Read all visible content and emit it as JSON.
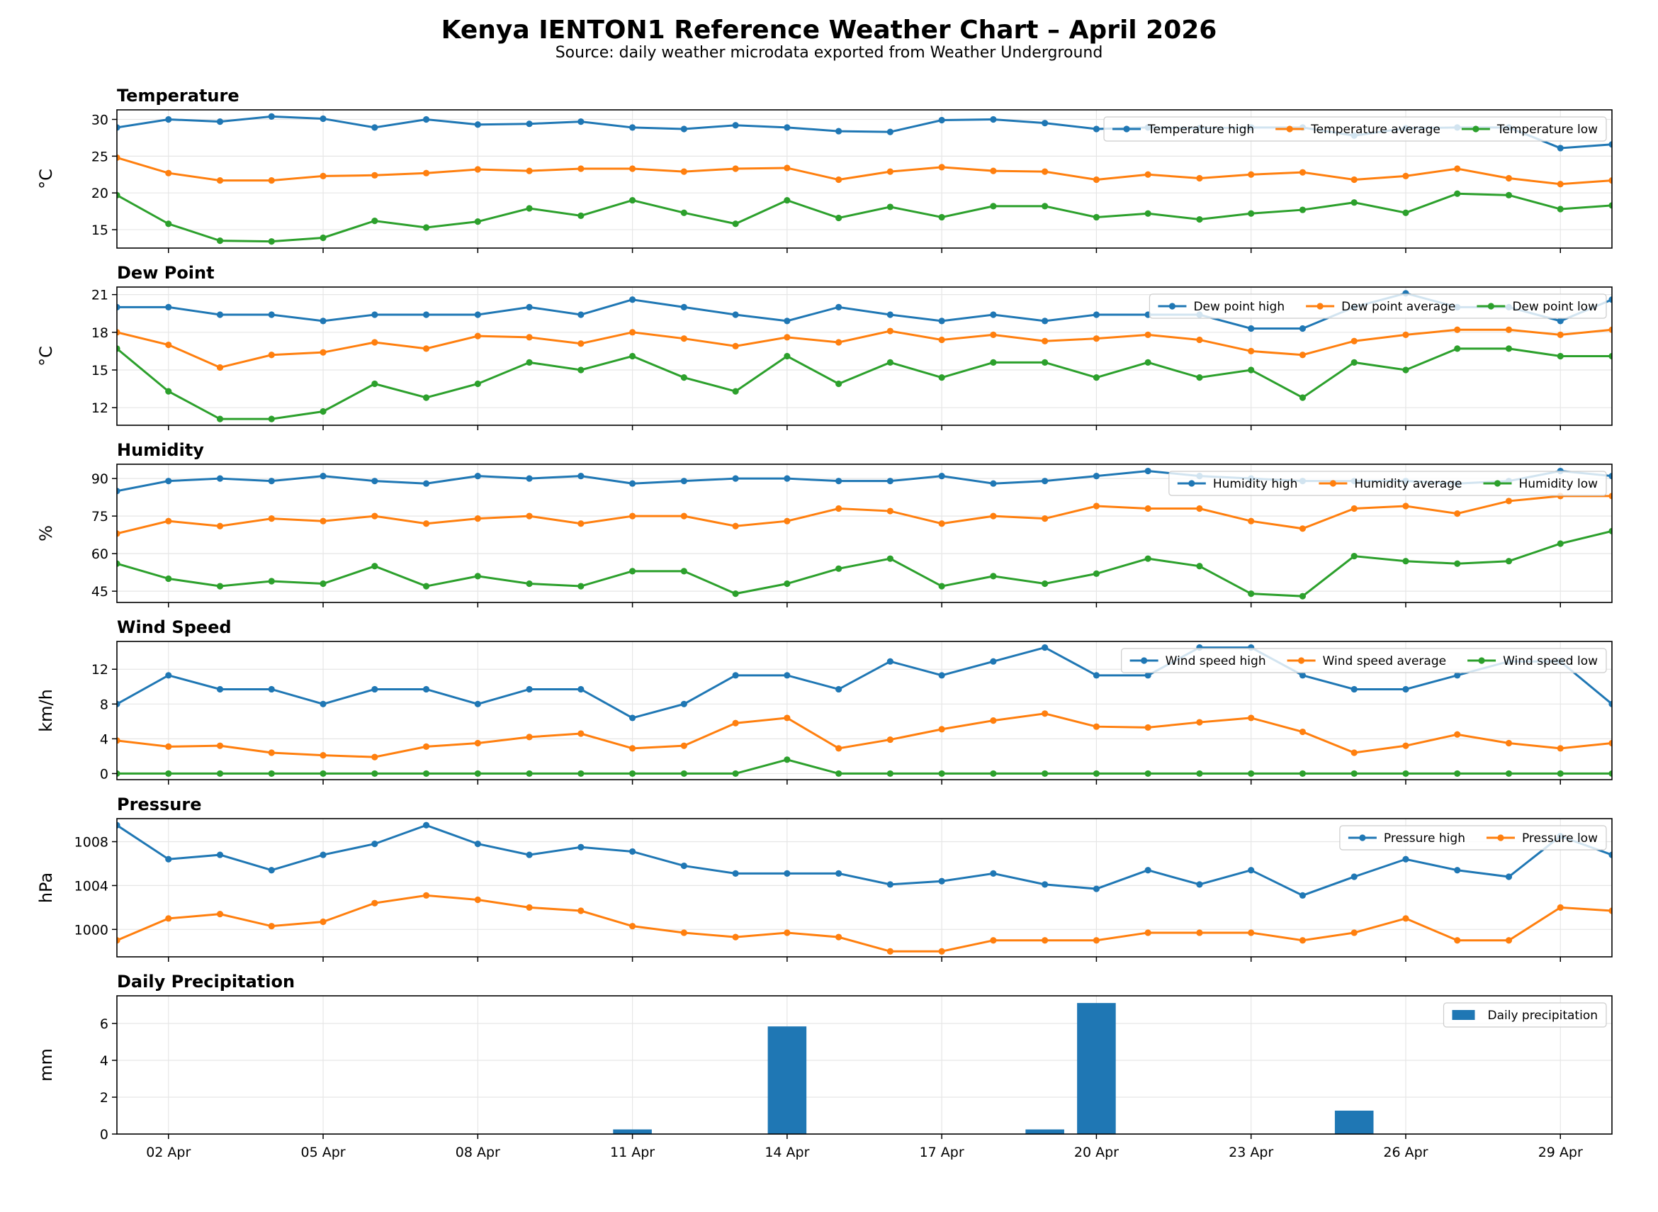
{
  "figure": {
    "title": "Kenya IENTON1 Reference Weather Chart – April 2026",
    "subtitle": "Source: daily weather microdata exported from Weather Underground"
  },
  "colors": {
    "blue": "#1f77b4",
    "orange": "#ff7f0e",
    "green": "#2ca02c",
    "grid": "#e6e6e6"
  },
  "x_tick_labels": [
    "02 Apr",
    "05 Apr",
    "08 Apr",
    "11 Apr",
    "14 Apr",
    "17 Apr",
    "20 Apr",
    "23 Apr",
    "26 Apr",
    "29 Apr"
  ],
  "chart_data": [
    {
      "type": "line",
      "title": "Temperature",
      "ylabel": "°C",
      "x": [
        "2026-04-01",
        "2026-04-02",
        "2026-04-03",
        "2026-04-04",
        "2026-04-05",
        "2026-04-06",
        "2026-04-07",
        "2026-04-08",
        "2026-04-09",
        "2026-04-10",
        "2026-04-11",
        "2026-04-12",
        "2026-04-13",
        "2026-04-14",
        "2026-04-15",
        "2026-04-16",
        "2026-04-17",
        "2026-04-18",
        "2026-04-19",
        "2026-04-20",
        "2026-04-21",
        "2026-04-22",
        "2026-04-23",
        "2026-04-24",
        "2026-04-25",
        "2026-04-26",
        "2026-04-27",
        "2026-04-28",
        "2026-04-29",
        "2026-04-30"
      ],
      "ylim": [
        12.5,
        31.3
      ],
      "yticks": [
        15,
        20,
        25,
        30
      ],
      "grid": true,
      "legend": "top-right",
      "series": [
        {
          "name": "Temperature high",
          "color": "#1f77b4",
          "values": [
            28.9,
            30.0,
            29.7,
            30.4,
            30.1,
            28.9,
            30.0,
            29.3,
            29.4,
            29.7,
            28.9,
            28.7,
            29.2,
            28.9,
            28.4,
            28.3,
            29.9,
            30.0,
            29.5,
            28.7,
            28.9,
            28.8,
            28.9,
            28.9,
            27.8,
            28.8,
            28.9,
            28.9,
            26.1,
            26.6
          ]
        },
        {
          "name": "Temperature average",
          "color": "#ff7f0e",
          "values": [
            24.8,
            22.7,
            21.7,
            21.7,
            22.3,
            22.4,
            22.7,
            23.2,
            23.0,
            23.3,
            23.3,
            22.9,
            23.3,
            23.4,
            21.8,
            22.9,
            23.5,
            23.0,
            22.9,
            21.8,
            22.5,
            22.0,
            22.5,
            22.8,
            21.8,
            22.3,
            23.3,
            22.0,
            21.2,
            21.7
          ]
        },
        {
          "name": "Temperature low",
          "color": "#2ca02c",
          "values": [
            19.7,
            15.8,
            13.5,
            13.4,
            13.9,
            16.2,
            15.3,
            16.1,
            17.9,
            16.9,
            19.0,
            17.3,
            15.8,
            19.0,
            16.6,
            18.1,
            16.7,
            18.2,
            18.2,
            16.7,
            17.2,
            16.4,
            17.2,
            17.7,
            18.7,
            17.3,
            19.9,
            19.7,
            17.8,
            18.3
          ]
        }
      ]
    },
    {
      "type": "line",
      "title": "Dew Point",
      "ylabel": "°C",
      "x": [
        "2026-04-01",
        "2026-04-02",
        "2026-04-03",
        "2026-04-04",
        "2026-04-05",
        "2026-04-06",
        "2026-04-07",
        "2026-04-08",
        "2026-04-09",
        "2026-04-10",
        "2026-04-11",
        "2026-04-12",
        "2026-04-13",
        "2026-04-14",
        "2026-04-15",
        "2026-04-16",
        "2026-04-17",
        "2026-04-18",
        "2026-04-19",
        "2026-04-20",
        "2026-04-21",
        "2026-04-22",
        "2026-04-23",
        "2026-04-24",
        "2026-04-25",
        "2026-04-26",
        "2026-04-27",
        "2026-04-28",
        "2026-04-29",
        "2026-04-30"
      ],
      "ylim": [
        10.6,
        21.6
      ],
      "yticks": [
        12,
        15,
        18,
        21
      ],
      "grid": true,
      "legend": "top-right",
      "series": [
        {
          "name": "Dew point high",
          "color": "#1f77b4",
          "values": [
            20.0,
            20.0,
            19.4,
            19.4,
            18.9,
            19.4,
            19.4,
            19.4,
            20.0,
            19.4,
            20.6,
            20.0,
            19.4,
            18.9,
            20.0,
            19.4,
            18.9,
            19.4,
            18.9,
            19.4,
            19.4,
            19.4,
            18.3,
            18.3,
            20.0,
            21.1,
            20.0,
            20.0,
            18.9,
            20.6
          ]
        },
        {
          "name": "Dew point average",
          "color": "#ff7f0e",
          "values": [
            18.0,
            17.0,
            15.2,
            16.2,
            16.4,
            17.2,
            16.7,
            17.7,
            17.6,
            17.1,
            18.0,
            17.5,
            16.9,
            17.6,
            17.2,
            18.1,
            17.4,
            17.8,
            17.3,
            17.5,
            17.8,
            17.4,
            16.5,
            16.2,
            17.3,
            17.8,
            18.2,
            18.2,
            17.8,
            18.2
          ]
        },
        {
          "name": "Dew point low",
          "color": "#2ca02c",
          "values": [
            16.7,
            13.3,
            11.1,
            11.1,
            11.7,
            13.9,
            12.8,
            13.9,
            15.6,
            15.0,
            16.1,
            14.4,
            13.3,
            16.1,
            13.9,
            15.6,
            14.4,
            15.6,
            15.6,
            14.4,
            15.6,
            14.4,
            15.0,
            12.8,
            15.6,
            15.0,
            16.7,
            16.7,
            16.1,
            16.1
          ]
        }
      ]
    },
    {
      "type": "line",
      "title": "Humidity",
      "ylabel": "%",
      "x": [
        "2026-04-01",
        "2026-04-02",
        "2026-04-03",
        "2026-04-04",
        "2026-04-05",
        "2026-04-06",
        "2026-04-07",
        "2026-04-08",
        "2026-04-09",
        "2026-04-10",
        "2026-04-11",
        "2026-04-12",
        "2026-04-13",
        "2026-04-14",
        "2026-04-15",
        "2026-04-16",
        "2026-04-17",
        "2026-04-18",
        "2026-04-19",
        "2026-04-20",
        "2026-04-21",
        "2026-04-22",
        "2026-04-23",
        "2026-04-24",
        "2026-04-25",
        "2026-04-26",
        "2026-04-27",
        "2026-04-28",
        "2026-04-29",
        "2026-04-30"
      ],
      "ylim": [
        40.5,
        95.7
      ],
      "yticks": [
        45,
        60,
        75,
        90
      ],
      "grid": true,
      "legend": "top-right",
      "series": [
        {
          "name": "Humidity high",
          "color": "#1f77b4",
          "values": [
            85,
            89,
            90,
            89,
            91,
            89,
            88,
            91,
            90,
            91,
            88,
            89,
            90,
            90,
            89,
            89,
            91,
            88,
            89,
            91,
            93,
            91,
            90,
            89,
            89,
            89,
            88,
            89,
            93,
            91
          ]
        },
        {
          "name": "Humidity average",
          "color": "#ff7f0e",
          "values": [
            68,
            73,
            71,
            74,
            73,
            75,
            72,
            74,
            75,
            72,
            75,
            75,
            71,
            73,
            78,
            77,
            72,
            75,
            74,
            79,
            78,
            78,
            73,
            70,
            78,
            79,
            76,
            81,
            83,
            83
          ]
        },
        {
          "name": "Humidity low",
          "color": "#2ca02c",
          "values": [
            56,
            50,
            47,
            49,
            48,
            55,
            47,
            51,
            48,
            47,
            53,
            53,
            44,
            48,
            54,
            58,
            47,
            51,
            48,
            52,
            58,
            55,
            44,
            43,
            59,
            57,
            56,
            57,
            64,
            69
          ]
        }
      ]
    },
    {
      "type": "line",
      "title": "Wind Speed",
      "ylabel": "km/h",
      "x": [
        "2026-04-01",
        "2026-04-02",
        "2026-04-03",
        "2026-04-04",
        "2026-04-05",
        "2026-04-06",
        "2026-04-07",
        "2026-04-08",
        "2026-04-09",
        "2026-04-10",
        "2026-04-11",
        "2026-04-12",
        "2026-04-13",
        "2026-04-14",
        "2026-04-15",
        "2026-04-16",
        "2026-04-17",
        "2026-04-18",
        "2026-04-19",
        "2026-04-20",
        "2026-04-21",
        "2026-04-22",
        "2026-04-23",
        "2026-04-24",
        "2026-04-25",
        "2026-04-26",
        "2026-04-27",
        "2026-04-28",
        "2026-04-29",
        "2026-04-30"
      ],
      "ylim": [
        -0.7,
        15.2
      ],
      "yticks": [
        0,
        4,
        8,
        12
      ],
      "grid": true,
      "legend": "top-right",
      "series": [
        {
          "name": "Wind speed high",
          "color": "#1f77b4",
          "values": [
            8.0,
            11.3,
            9.7,
            9.7,
            8.0,
            9.7,
            9.7,
            8.0,
            9.7,
            9.7,
            6.4,
            8.0,
            11.3,
            11.3,
            9.7,
            12.9,
            11.3,
            12.9,
            14.5,
            11.3,
            11.3,
            14.5,
            14.5,
            11.3,
            9.7,
            9.7,
            11.3,
            12.9,
            12.9,
            8.0
          ]
        },
        {
          "name": "Wind speed average",
          "color": "#ff7f0e",
          "values": [
            3.8,
            3.1,
            3.2,
            2.4,
            2.1,
            1.9,
            3.1,
            3.5,
            4.2,
            4.6,
            2.9,
            3.2,
            5.8,
            6.4,
            2.9,
            3.9,
            5.1,
            6.1,
            6.9,
            5.4,
            5.3,
            5.9,
            6.4,
            4.8,
            2.4,
            3.2,
            4.5,
            3.5,
            2.9,
            3.5
          ]
        },
        {
          "name": "Wind speed low",
          "color": "#2ca02c",
          "values": [
            0,
            0,
            0,
            0,
            0,
            0,
            0,
            0,
            0,
            0,
            0,
            0,
            0,
            1.6,
            0,
            0,
            0,
            0,
            0,
            0,
            0,
            0,
            0,
            0,
            0,
            0,
            0,
            0,
            0,
            0
          ]
        }
      ]
    },
    {
      "type": "line",
      "title": "Pressure",
      "ylabel": "hPa",
      "x": [
        "2026-04-01",
        "2026-04-02",
        "2026-04-03",
        "2026-04-04",
        "2026-04-05",
        "2026-04-06",
        "2026-04-07",
        "2026-04-08",
        "2026-04-09",
        "2026-04-10",
        "2026-04-11",
        "2026-04-12",
        "2026-04-13",
        "2026-04-14",
        "2026-04-15",
        "2026-04-16",
        "2026-04-17",
        "2026-04-18",
        "2026-04-19",
        "2026-04-20",
        "2026-04-21",
        "2026-04-22",
        "2026-04-23",
        "2026-04-24",
        "2026-04-25",
        "2026-04-26",
        "2026-04-27",
        "2026-04-28",
        "2026-04-29",
        "2026-04-30"
      ],
      "ylim": [
        997.5,
        1010.1
      ],
      "yticks": [
        1000,
        1004,
        1008
      ],
      "grid": true,
      "legend": "top-right",
      "series": [
        {
          "name": "Pressure high",
          "color": "#1f77b4",
          "values": [
            1009.5,
            1006.4,
            1006.8,
            1005.4,
            1006.8,
            1007.8,
            1009.5,
            1007.8,
            1006.8,
            1007.5,
            1007.1,
            1005.8,
            1005.1,
            1005.1,
            1005.1,
            1004.1,
            1004.4,
            1005.1,
            1004.1,
            1003.7,
            1005.4,
            1004.1,
            1005.4,
            1003.1,
            1004.8,
            1006.4,
            1005.4,
            1004.8,
            1008.5,
            1006.8
          ]
        },
        {
          "name": "Pressure low",
          "color": "#ff7f0e",
          "values": [
            999.0,
            1001.0,
            1001.4,
            1000.3,
            1000.7,
            1002.4,
            1003.1,
            1002.7,
            1002.0,
            1001.7,
            1000.3,
            999.7,
            999.3,
            999.7,
            999.3,
            998.0,
            998.0,
            999.0,
            999.0,
            999.0,
            999.7,
            999.7,
            999.7,
            999.0,
            999.7,
            1001.0,
            999.0,
            999.0,
            1002.0,
            1001.7
          ]
        }
      ]
    },
    {
      "type": "bar",
      "title": "Daily Precipitation",
      "ylabel": "mm",
      "x": [
        "2026-04-01",
        "2026-04-02",
        "2026-04-03",
        "2026-04-04",
        "2026-04-05",
        "2026-04-06",
        "2026-04-07",
        "2026-04-08",
        "2026-04-09",
        "2026-04-10",
        "2026-04-11",
        "2026-04-12",
        "2026-04-13",
        "2026-04-14",
        "2026-04-15",
        "2026-04-16",
        "2026-04-17",
        "2026-04-18",
        "2026-04-19",
        "2026-04-20",
        "2026-04-21",
        "2026-04-22",
        "2026-04-23",
        "2026-04-24",
        "2026-04-25",
        "2026-04-26",
        "2026-04-27",
        "2026-04-28",
        "2026-04-29",
        "2026-04-30"
      ],
      "ylim": [
        0,
        7.5
      ],
      "yticks": [
        0,
        2,
        4,
        6
      ],
      "grid": true,
      "legend": "top-right",
      "series": [
        {
          "name": "Daily precipitation",
          "color": "#1f77b4",
          "values": [
            0,
            0,
            0,
            0,
            0,
            0,
            0,
            0,
            0,
            0,
            0.25,
            0,
            0,
            5.84,
            0,
            0,
            0,
            0,
            0.25,
            7.11,
            0,
            0,
            0,
            0,
            1.27,
            0,
            0,
            0,
            0,
            0
          ]
        }
      ]
    }
  ]
}
